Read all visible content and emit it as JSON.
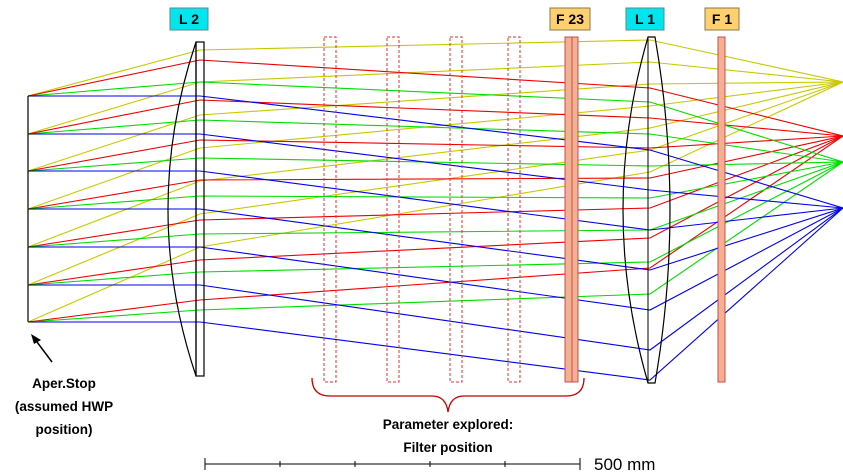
{
  "labels": {
    "l2": "L 2",
    "f23": "F 23",
    "l1": "L 1",
    "f1": "F 1"
  },
  "annotations": {
    "aperture_line1": "Aper.Stop",
    "aperture_line2": "(assumed HWP",
    "aperture_line3": "position)",
    "parameter_line1": "Parameter explored:",
    "parameter_line2": "Filter position"
  },
  "scale_bar": {
    "label": "500 mm"
  },
  "colors": {
    "lens_label_fill": "#00E5EE",
    "filter_label_fill": "#FFD070",
    "filter_fill": "#F4B090",
    "filter_stroke": "#C0504D",
    "candidate_stroke": "#E03030",
    "ray_yellow": "#C8C800",
    "ray_red": "#EE0000",
    "ray_green": "#00DD00",
    "ray_blue": "#0000EE",
    "brace": "#C00000"
  }
}
